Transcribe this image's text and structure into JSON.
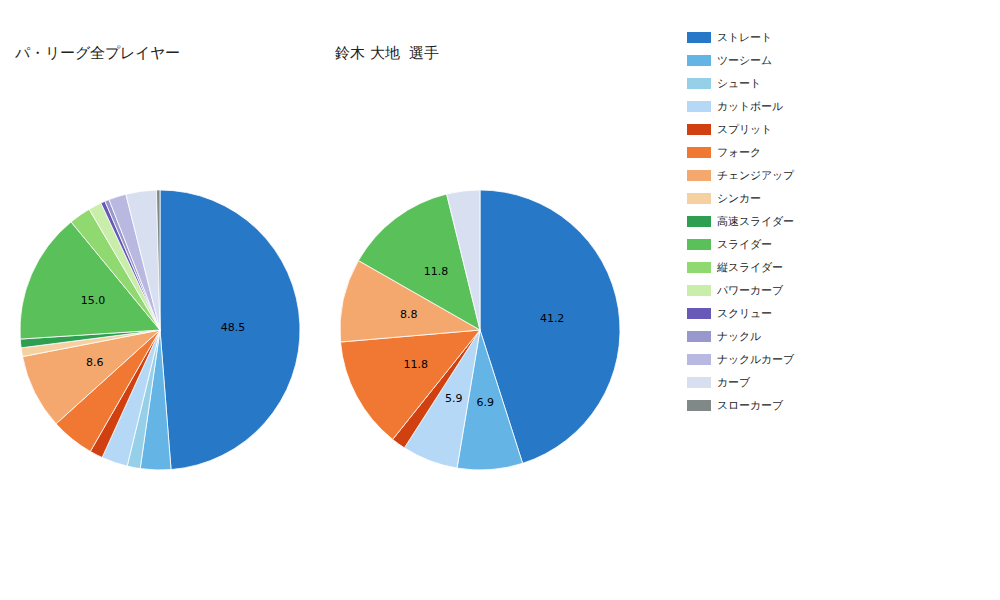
{
  "chart_data": [
    {
      "type": "pie",
      "title": "パ・リーグ全プレイヤー",
      "categories": [
        "ストレート",
        "ツーシーム",
        "シュート",
        "カットボール",
        "スプリット",
        "フォーク",
        "チェンジアップ",
        "シンカー",
        "高速スライダー",
        "スライダー",
        "縦スライダー",
        "パワーカーブ",
        "スクリュー",
        "ナックル",
        "ナックルカーブ",
        "カーブ",
        "スローカーブ"
      ],
      "values": [
        48.5,
        3.5,
        1.5,
        3.0,
        1.5,
        5.0,
        8.6,
        1.0,
        1.0,
        15.0,
        2.5,
        1.5,
        0.5,
        0.5,
        2.0,
        3.5,
        0.4
      ],
      "value_labels": [
        "48.5",
        null,
        null,
        null,
        null,
        null,
        "8.6",
        null,
        null,
        "15.0",
        null,
        null,
        null,
        null,
        null,
        null,
        null
      ],
      "colors": [
        "#2878c8",
        "#64b4e6",
        "#96cfe8",
        "#b4d8f5",
        "#d04010",
        "#f07832",
        "#f5a86e",
        "#f5d0a0",
        "#2e9e50",
        "#5ac05a",
        "#90d870",
        "#c8eeaa",
        "#6858b8",
        "#9898cc",
        "#b8b8e0",
        "#d8dff0",
        "#808888"
      ],
      "legend": "right"
    },
    {
      "type": "pie",
      "title": "鈴木 大地  選手",
      "categories": [
        "ストレート",
        "ツーシーム",
        "シュート",
        "カットボール",
        "スプリット",
        "フォーク",
        "チェンジアップ",
        "シンカー",
        "高速スライダー",
        "スライダー",
        "縦スライダー",
        "パワーカーブ",
        "スクリュー",
        "ナックル",
        "ナックルカーブ",
        "カーブ",
        "スローカーブ"
      ],
      "values": [
        41.2,
        6.9,
        0.0,
        5.9,
        1.5,
        11.8,
        8.8,
        0.0,
        0.0,
        11.8,
        0.0,
        0.0,
        0.0,
        0.0,
        0.0,
        3.5,
        0.0
      ],
      "value_labels": [
        "41.2",
        "6.9",
        null,
        "5.9",
        null,
        "11.8",
        "8.8",
        null,
        null,
        "11.8",
        null,
        null,
        null,
        null,
        null,
        null,
        null
      ],
      "colors": [
        "#2878c8",
        "#64b4e6",
        "#96cfe8",
        "#b4d8f5",
        "#d04010",
        "#f07832",
        "#f5a86e",
        "#f5d0a0",
        "#2e9e50",
        "#5ac05a",
        "#90d870",
        "#c8eeaa",
        "#6858b8",
        "#9898cc",
        "#b8b8e0",
        "#d8dff0",
        "#808888"
      ],
      "legend": "right"
    }
  ]
}
